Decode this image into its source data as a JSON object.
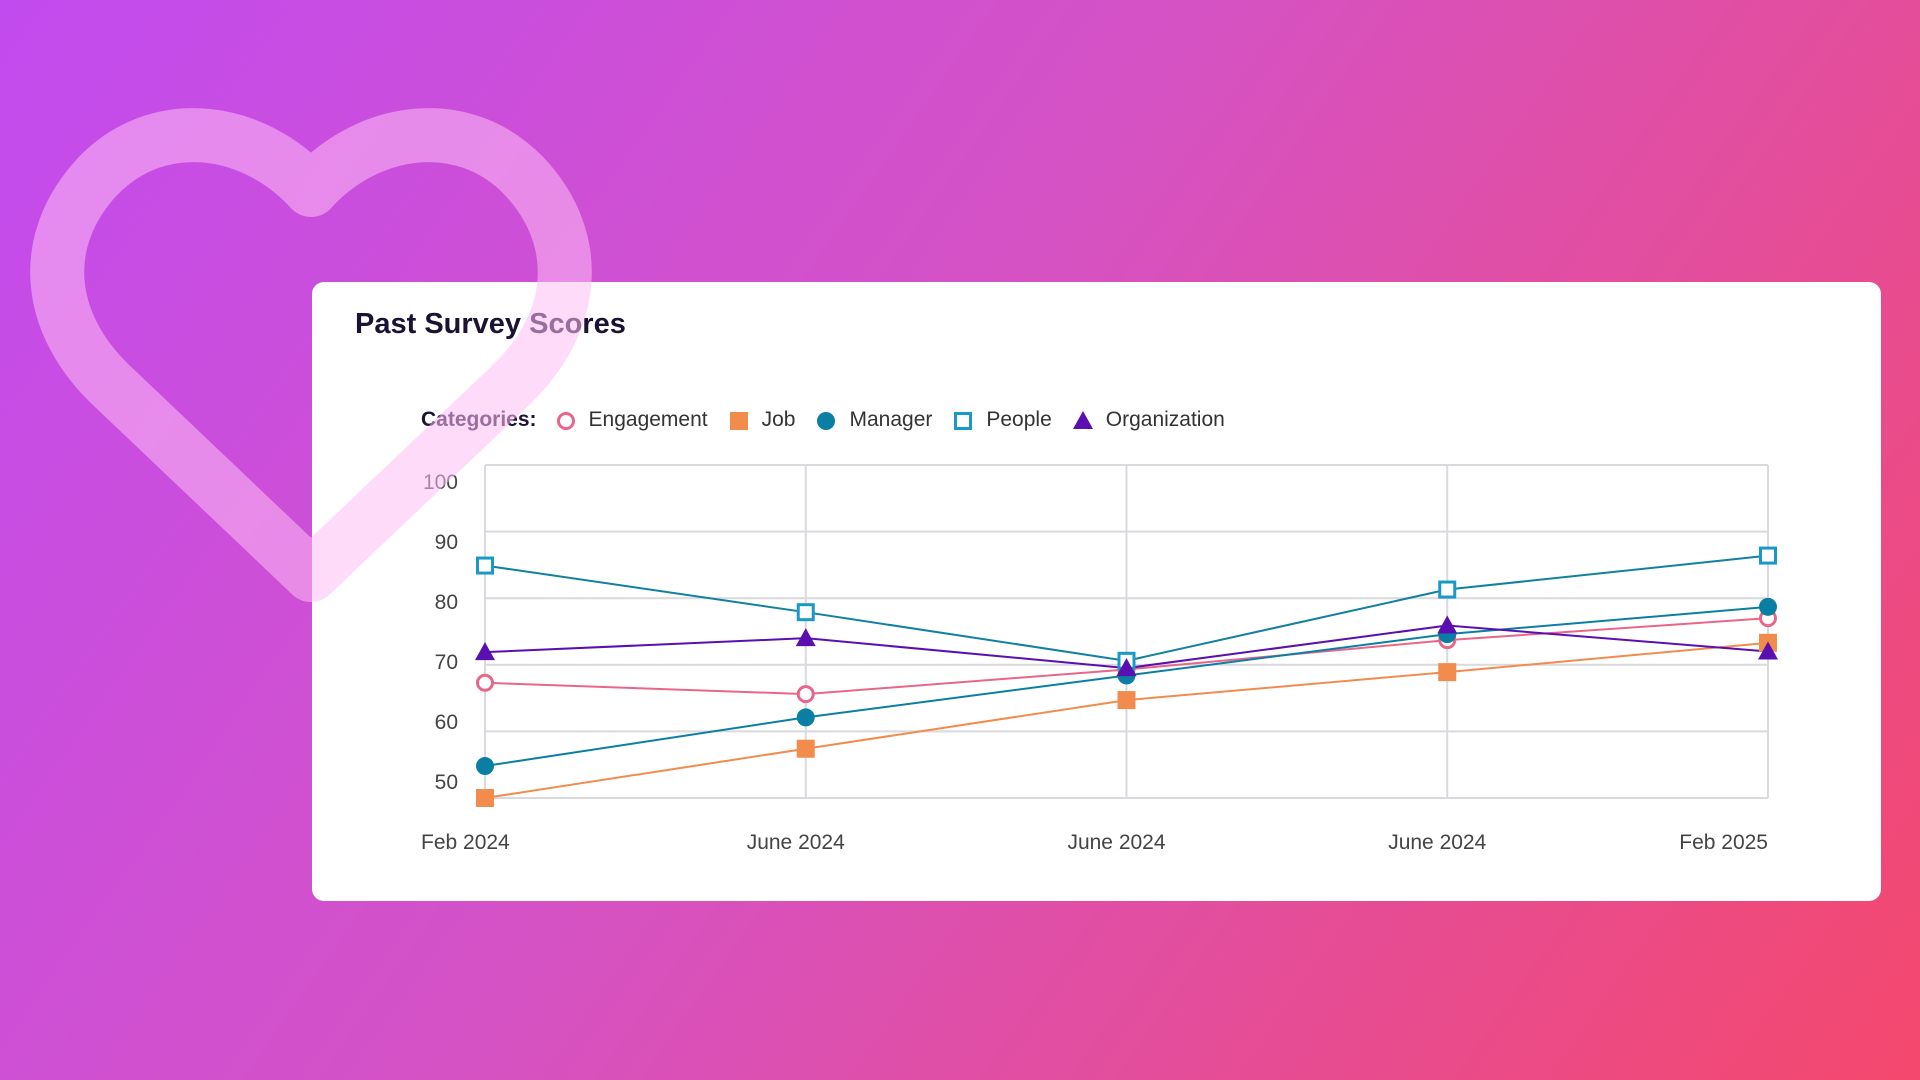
{
  "chart_data": {
    "type": "line",
    "title": "Past Survey Scores",
    "legend_label": "Categories:",
    "legend_placement": "top",
    "categories": [
      "Feb 2024",
      "June 2024",
      "June 2024",
      "June 2024",
      "Feb 2025"
    ],
    "y_ticks": [
      "100",
      "90",
      "80",
      "70",
      "60",
      "50"
    ],
    "ylim": [
      50,
      100
    ],
    "grid": true,
    "series": [
      {
        "name": "Engagement",
        "marker": "circle-open",
        "color": "#e8668a",
        "values": [
          67.3,
          65.6,
          69.3,
          73.7,
          77.0
        ]
      },
      {
        "name": "Job",
        "marker": "square",
        "color": "#f28c4c",
        "values": [
          50.0,
          57.4,
          64.7,
          68.9,
          73.3
        ]
      },
      {
        "name": "Manager",
        "marker": "circle",
        "color": "#0a7fa3",
        "values": [
          54.8,
          62.1,
          68.4,
          74.6,
          78.7
        ]
      },
      {
        "name": "People",
        "marker": "square-open",
        "color": "#1a99c8",
        "line_color": "#12809f",
        "values": [
          84.9,
          77.9,
          70.6,
          81.3,
          86.4
        ]
      },
      {
        "name": "Organization",
        "marker": "triangle",
        "color": "#5a0fb0",
        "values": [
          71.9,
          74.0,
          69.5,
          75.9,
          72.0
        ]
      }
    ]
  },
  "colors": {
    "background_start": "#c24bef",
    "background_end": "#f4486d",
    "heart": "#ffc8f4"
  },
  "decoration": {
    "icon": "heart-outline-icon"
  }
}
